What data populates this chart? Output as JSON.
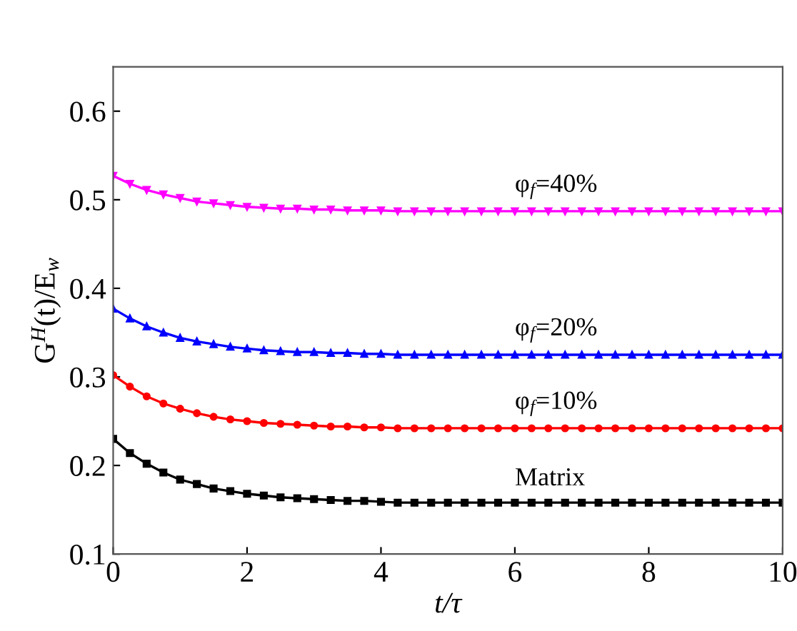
{
  "chart_data": {
    "type": "line",
    "xlabel": "t/τ",
    "ylabel": "G$^{H}$(t)/E$_{w}$",
    "x": [
      0,
      0.25,
      0.5,
      0.75,
      1,
      1.25,
      1.5,
      1.75,
      2,
      2.25,
      2.5,
      2.75,
      3,
      3.25,
      3.5,
      3.75,
      4,
      4.25,
      4.5,
      4.75,
      5,
      5.25,
      5.5,
      5.75,
      6,
      6.25,
      6.5,
      6.75,
      7,
      7.25,
      7.5,
      7.75,
      8,
      8.25,
      8.5,
      8.75,
      9,
      9.25,
      9.5,
      9.75,
      10
    ],
    "series": [
      {
        "name": "Matrix",
        "color": "#000000",
        "marker": "square",
        "values": [
          0.23,
          0.214,
          0.202,
          0.192,
          0.184,
          0.179,
          0.174,
          0.171,
          0.168,
          0.166,
          0.164,
          0.163,
          0.162,
          0.161,
          0.16,
          0.16,
          0.159,
          0.158,
          0.158,
          0.158,
          0.158,
          0.158,
          0.158,
          0.158,
          0.158,
          0.158,
          0.158,
          0.158,
          0.158,
          0.158,
          0.158,
          0.158,
          0.158,
          0.158,
          0.158,
          0.158,
          0.158,
          0.158,
          0.158,
          0.158,
          0.158
        ]
      },
      {
        "name": "φ$_{f}$=10%",
        "color": "#ff0000",
        "marker": "circle",
        "values": [
          0.302,
          0.289,
          0.278,
          0.27,
          0.264,
          0.259,
          0.255,
          0.252,
          0.25,
          0.248,
          0.247,
          0.246,
          0.245,
          0.244,
          0.244,
          0.243,
          0.243,
          0.242,
          0.242,
          0.242,
          0.242,
          0.242,
          0.242,
          0.242,
          0.242,
          0.242,
          0.242,
          0.242,
          0.242,
          0.242,
          0.242,
          0.242,
          0.242,
          0.242,
          0.242,
          0.242,
          0.242,
          0.242,
          0.242,
          0.242,
          0.242
        ]
      },
      {
        "name": "φ$_{f}$=20%",
        "color": "#0000ff",
        "marker": "triangle",
        "values": [
          0.377,
          0.366,
          0.357,
          0.35,
          0.344,
          0.34,
          0.337,
          0.334,
          0.332,
          0.33,
          0.329,
          0.328,
          0.328,
          0.327,
          0.327,
          0.326,
          0.326,
          0.325,
          0.325,
          0.325,
          0.325,
          0.325,
          0.325,
          0.325,
          0.325,
          0.325,
          0.325,
          0.325,
          0.325,
          0.325,
          0.325,
          0.325,
          0.325,
          0.325,
          0.325,
          0.325,
          0.325,
          0.325,
          0.325,
          0.325,
          0.325
        ]
      },
      {
        "name": "φ$_{f}$=40%",
        "color": "#ff00ff",
        "marker": "triangle_down",
        "values": [
          0.527,
          0.518,
          0.511,
          0.506,
          0.502,
          0.498,
          0.496,
          0.494,
          0.492,
          0.491,
          0.49,
          0.49,
          0.489,
          0.489,
          0.488,
          0.488,
          0.488,
          0.487,
          0.487,
          0.487,
          0.487,
          0.487,
          0.487,
          0.487,
          0.487,
          0.487,
          0.487,
          0.487,
          0.487,
          0.487,
          0.487,
          0.487,
          0.487,
          0.487,
          0.487,
          0.487,
          0.487,
          0.487,
          0.487,
          0.487,
          0.487
        ]
      }
    ],
    "xlim": [
      0,
      10
    ],
    "xticks": [
      0,
      2,
      4,
      6,
      8,
      10
    ],
    "ylim": [
      0.1,
      0.65
    ],
    "yticks": [
      0.1,
      0.2,
      0.3,
      0.4,
      0.5,
      0.6
    ],
    "grid": false,
    "legend": false,
    "line_style": "solid"
  }
}
